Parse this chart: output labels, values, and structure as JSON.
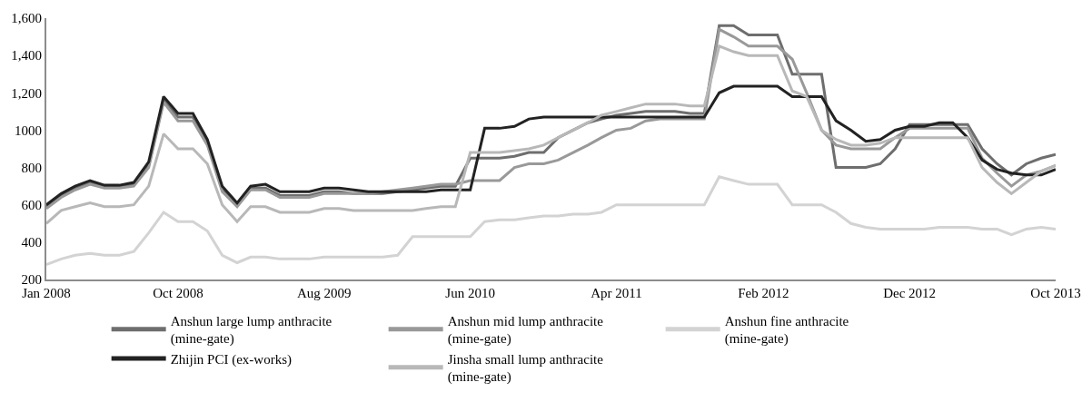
{
  "chart_data": {
    "type": "line",
    "x": [
      "2008-01",
      "2008-02",
      "2008-03",
      "2008-04",
      "2008-05",
      "2008-06",
      "2008-07",
      "2008-08",
      "2008-09",
      "2008-10",
      "2008-11",
      "2008-12",
      "2009-01",
      "2009-02",
      "2009-03",
      "2009-04",
      "2009-05",
      "2009-06",
      "2009-07",
      "2009-08",
      "2009-09",
      "2009-10",
      "2009-11",
      "2009-12",
      "2010-01",
      "2010-02",
      "2010-03",
      "2010-04",
      "2010-05",
      "2010-06",
      "2010-07",
      "2010-08",
      "2010-09",
      "2010-10",
      "2010-11",
      "2010-12",
      "2011-01",
      "2011-02",
      "2011-03",
      "2011-04",
      "2011-05",
      "2011-06",
      "2011-07",
      "2011-08",
      "2011-09",
      "2011-10",
      "2011-11",
      "2011-12",
      "2012-01",
      "2012-02",
      "2012-03",
      "2012-04",
      "2012-05",
      "2012-06",
      "2012-07",
      "2012-08",
      "2012-09",
      "2012-10",
      "2012-11",
      "2012-12",
      "2013-01",
      "2013-02",
      "2013-03",
      "2013-04",
      "2013-05",
      "2013-06",
      "2013-07",
      "2013-08",
      "2013-09",
      "2013-10"
    ],
    "series": [
      {
        "name": "Anshun large lump anthracite (mine-gate)",
        "color": "#6e6e6e",
        "values": [
          590,
          650,
          690,
          720,
          695,
          695,
          710,
          810,
          1160,
          1070,
          1070,
          930,
          680,
          600,
          690,
          690,
          650,
          650,
          650,
          670,
          670,
          660,
          660,
          660,
          670,
          680,
          690,
          700,
          700,
          850,
          850,
          850,
          860,
          880,
          880,
          960,
          1000,
          1040,
          1060,
          1080,
          1090,
          1100,
          1100,
          1100,
          1090,
          1090,
          1560,
          1560,
          1510,
          1510,
          1510,
          1300,
          1300,
          1300,
          800,
          800,
          800,
          820,
          900,
          1030,
          1030,
          1030,
          1030,
          1030,
          900,
          820,
          760,
          820,
          850,
          870
        ]
      },
      {
        "name": "Anshun mid lump anthracite (mine-gate)",
        "color": "#999999",
        "values": [
          580,
          640,
          680,
          710,
          690,
          690,
          700,
          800,
          1150,
          1050,
          1050,
          920,
          670,
          590,
          680,
          680,
          640,
          640,
          640,
          660,
          660,
          660,
          660,
          670,
          680,
          690,
          700,
          710,
          710,
          730,
          730,
          730,
          800,
          820,
          820,
          840,
          880,
          920,
          960,
          1000,
          1010,
          1050,
          1060,
          1060,
          1060,
          1060,
          1540,
          1500,
          1450,
          1450,
          1450,
          1380,
          1200,
          1000,
          920,
          900,
          900,
          900,
          960,
          1010,
          1010,
          1010,
          1010,
          1010,
          850,
          770,
          700,
          760,
          780,
          810
        ]
      },
      {
        "name": "Anshun fine anthracite (mine-gate)",
        "color": "#d3d3d3",
        "values": [
          280,
          310,
          330,
          340,
          330,
          330,
          350,
          450,
          560,
          510,
          510,
          460,
          330,
          290,
          320,
          320,
          310,
          310,
          310,
          320,
          320,
          320,
          320,
          320,
          330,
          430,
          430,
          430,
          430,
          430,
          510,
          520,
          520,
          530,
          540,
          540,
          550,
          550,
          560,
          600,
          600,
          600,
          600,
          600,
          600,
          600,
          750,
          730,
          710,
          710,
          710,
          600,
          600,
          600,
          560,
          500,
          480,
          470,
          470,
          470,
          470,
          480,
          480,
          480,
          470,
          470,
          440,
          470,
          480,
          470
        ]
      },
      {
        "name": "Zhijin PCI (ex-works)",
        "color": "#222222",
        "values": [
          600,
          660,
          700,
          730,
          705,
          705,
          720,
          830,
          1180,
          1090,
          1090,
          950,
          700,
          610,
          700,
          710,
          670,
          670,
          670,
          690,
          690,
          680,
          670,
          670,
          670,
          670,
          670,
          680,
          680,
          680,
          1010,
          1010,
          1020,
          1060,
          1070,
          1070,
          1070,
          1070,
          1070,
          1070,
          1070,
          1070,
          1070,
          1070,
          1070,
          1070,
          1200,
          1235,
          1235,
          1235,
          1235,
          1180,
          1180,
          1180,
          1050,
          1000,
          940,
          950,
          1000,
          1020,
          1020,
          1040,
          1040,
          960,
          840,
          790,
          770,
          760,
          760,
          790
        ]
      },
      {
        "name": "Jinsha small lump anthracite (mine-gate)",
        "color": "#b8b8b8",
        "values": [
          500,
          570,
          590,
          610,
          590,
          590,
          600,
          700,
          980,
          900,
          900,
          820,
          600,
          510,
          590,
          590,
          560,
          560,
          560,
          580,
          580,
          570,
          570,
          570,
          570,
          570,
          580,
          590,
          590,
          880,
          880,
          880,
          890,
          900,
          920,
          960,
          1000,
          1040,
          1080,
          1100,
          1120,
          1140,
          1140,
          1140,
          1130,
          1130,
          1450,
          1420,
          1400,
          1400,
          1400,
          1210,
          1180,
          1000,
          950,
          920,
          920,
          930,
          960,
          960,
          960,
          960,
          960,
          960,
          800,
          720,
          660,
          720,
          780,
          810
        ]
      }
    ],
    "xlim": [
      "2008-01",
      "2013-10"
    ],
    "xticks": [
      {
        "value": "2008-01",
        "label": "Jan 2008"
      },
      {
        "value": "2008-10",
        "label": "Oct 2008"
      },
      {
        "value": "2009-08",
        "label": "Aug 2009"
      },
      {
        "value": "2010-06",
        "label": "Jun 2010"
      },
      {
        "value": "2011-04",
        "label": "Apr 2011"
      },
      {
        "value": "2012-02",
        "label": "Feb 2012"
      },
      {
        "value": "2012-12",
        "label": "Dec 2012"
      },
      {
        "value": "2013-10",
        "label": "Oct 2013"
      }
    ],
    "ylim": [
      200,
      1600
    ],
    "yticks": [
      200,
      400,
      600,
      800,
      1000,
      {
        "value": 1200,
        "label": "1,200"
      },
      {
        "value": 1400,
        "label": "1,400"
      },
      {
        "value": 1600,
        "label": "1,600"
      }
    ],
    "legend": "bottom",
    "marker": "none",
    "line_style": "solid"
  }
}
